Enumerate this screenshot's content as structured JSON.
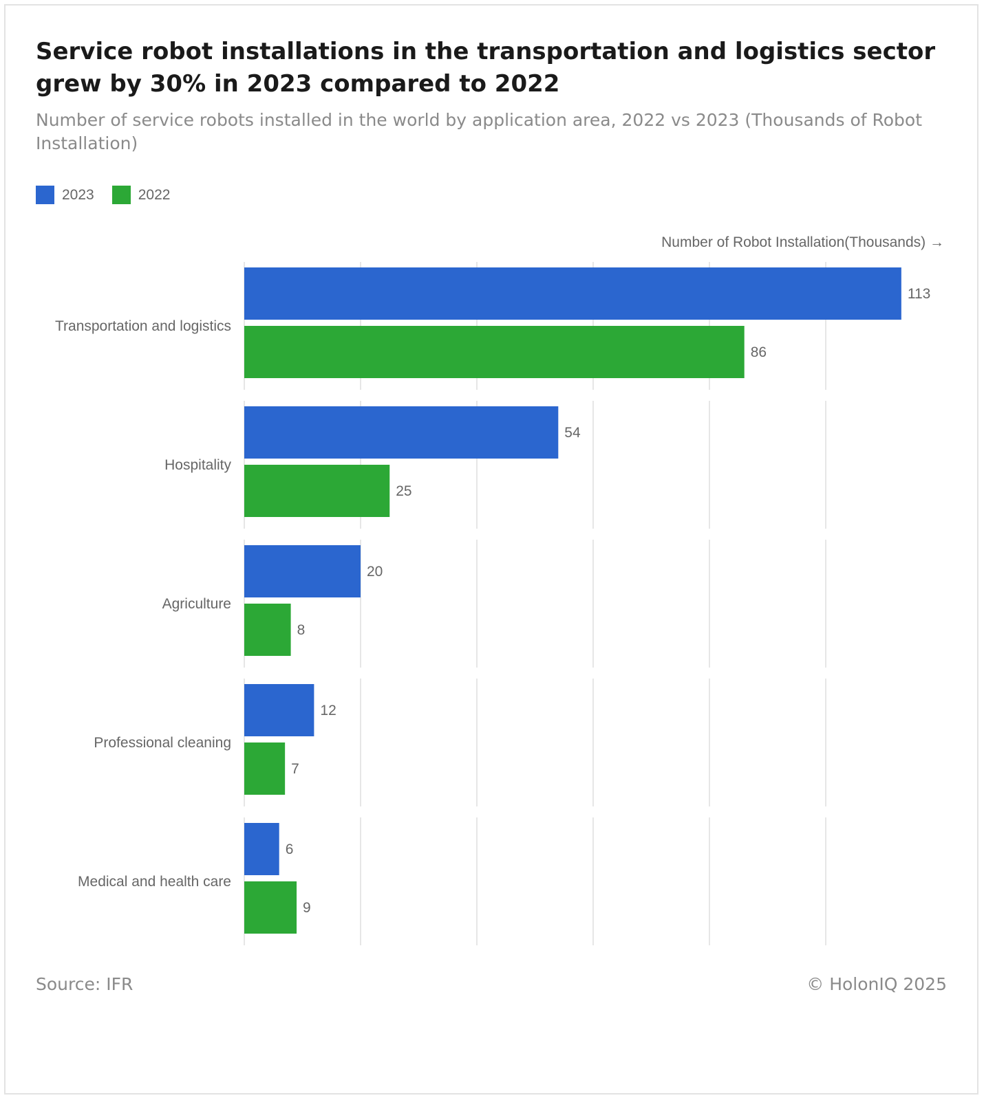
{
  "header": {
    "title": "Service robot installations in the transportation and logistics sector grew by 30% in 2023 compared to 2022",
    "subtitle": "Number of service robots installed in the world by application area, 2022 vs 2023 (Thousands of Robot Installation)"
  },
  "legend": [
    {
      "label": "2023",
      "color": "#2b66cf"
    },
    {
      "label": "2022",
      "color": "#2ca836"
    }
  ],
  "chart_data": {
    "type": "bar",
    "orientation": "horizontal",
    "categories": [
      "Transportation and logistics",
      "Hospitality",
      "Agriculture",
      "Professional cleaning",
      "Medical and health care"
    ],
    "series": [
      {
        "name": "2023",
        "color": "#2b66cf",
        "values": [
          113,
          54,
          20,
          12,
          6
        ]
      },
      {
        "name": "2022",
        "color": "#2ca836",
        "values": [
          86,
          25,
          8,
          7,
          9
        ]
      }
    ],
    "xlabel": "Number of Robot Installation(Thousands) →",
    "xlim": [
      0,
      120
    ],
    "grid": true,
    "gridlines": [
      0,
      20,
      40,
      60,
      80,
      100
    ],
    "show_data_labels": true,
    "legend_position": "top-left"
  },
  "footer": {
    "source": "Source: IFR",
    "copyright": "© HolonIQ 2025"
  }
}
